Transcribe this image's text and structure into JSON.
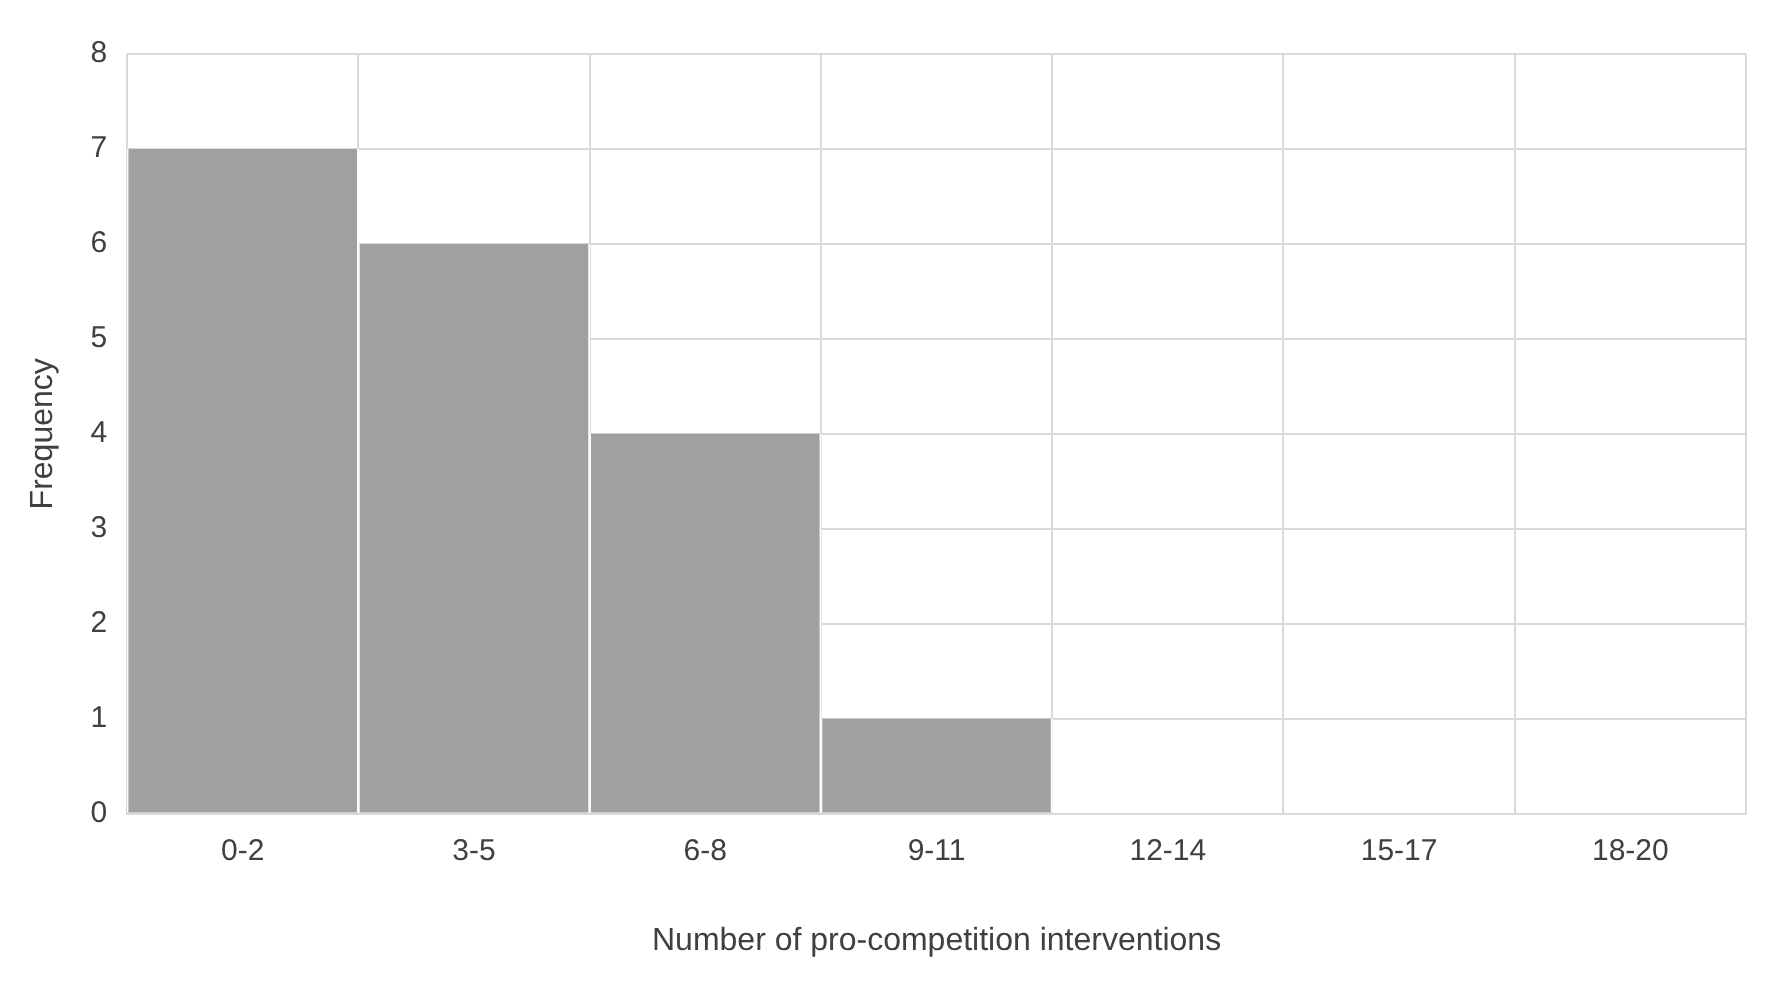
{
  "chart_data": {
    "type": "bar",
    "xlabel": "Number of pro-competition interventions",
    "ylabel": "Frequency",
    "categories": [
      "0-2",
      "3-5",
      "6-8",
      "9-11",
      "12-14",
      "15-17",
      "18-20"
    ],
    "values": [
      7,
      6,
      4,
      1,
      0,
      0,
      0
    ],
    "color": "#a0a0a0",
    "ylim": [
      0,
      8
    ],
    "yticks": [
      0,
      1,
      2,
      3,
      4,
      5,
      6,
      7,
      8
    ],
    "grid": true,
    "legend": false
  }
}
